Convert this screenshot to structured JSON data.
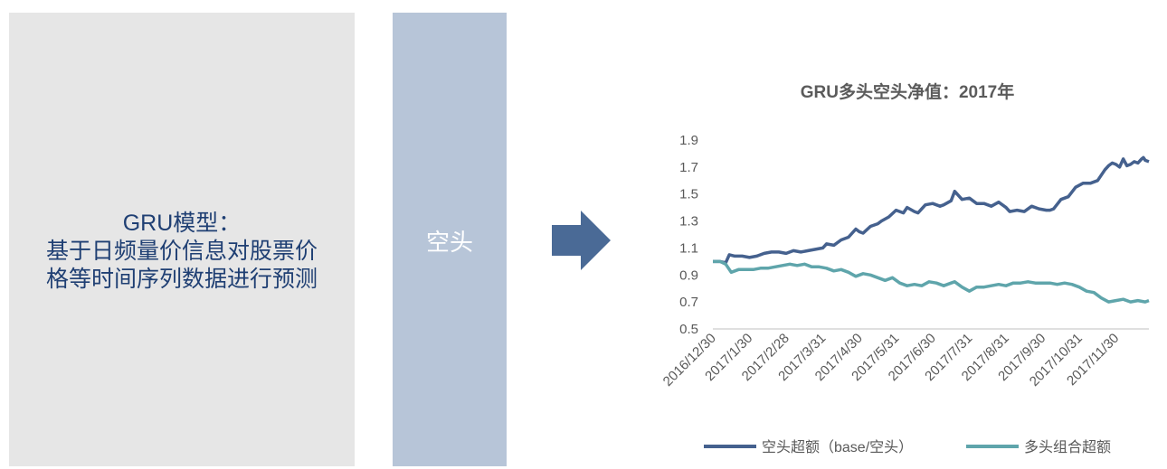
{
  "left_box": {
    "line1": "GRU模型：",
    "line2": "基于日频量价信息对股票价",
    "line3": "格等时间序列数据进行预测"
  },
  "mid_box": {
    "label": "空头"
  },
  "colors": {
    "left_bg": "#e6e6e6",
    "left_text": "#1f3f73",
    "mid_bg": "#b7c5d8",
    "arrow": "#4a6a96",
    "series_short": "#45618e",
    "series_long": "#5fa5ab"
  },
  "chart_data": {
    "type": "line",
    "title": "GRU多头空头净值：2017年",
    "ylim": [
      0.5,
      1.9
    ],
    "yticks": [
      "0.5",
      "0.7",
      "0.9",
      "1.1",
      "1.3",
      "1.5",
      "1.7",
      "1.9"
    ],
    "x_ticks": [
      "2016/12/30",
      "2017/1/30",
      "2017/2/28",
      "2017/3/31",
      "2017/4/30",
      "2017/5/31",
      "2017/6/30",
      "2017/7/31",
      "2017/8/31",
      "2017/9/30",
      "2017/10/31",
      "2017/11/30"
    ],
    "x_tick_values": [
      0,
      1,
      2,
      3,
      4,
      5,
      6,
      7,
      8,
      9,
      10,
      11
    ],
    "x_range": [
      0,
      11.9
    ],
    "grid": false,
    "legend_position": "bottom",
    "series": [
      {
        "name": "空头超额（base/空头）",
        "x": [
          0,
          0.2,
          0.35,
          0.45,
          0.6,
          0.8,
          1.0,
          1.2,
          1.4,
          1.6,
          1.8,
          2.0,
          2.2,
          2.4,
          2.6,
          2.8,
          3.0,
          3.1,
          3.3,
          3.5,
          3.7,
          3.9,
          4.0,
          4.1,
          4.3,
          4.5,
          4.6,
          4.8,
          5.0,
          5.2,
          5.3,
          5.5,
          5.6,
          5.8,
          6.0,
          6.2,
          6.3,
          6.5,
          6.6,
          6.8,
          7.0,
          7.2,
          7.4,
          7.6,
          7.8,
          8.0,
          8.1,
          8.3,
          8.5,
          8.7,
          8.9,
          9.1,
          9.2,
          9.3,
          9.5,
          9.7,
          9.9,
          10.1,
          10.3,
          10.5,
          10.7,
          10.8,
          10.9,
          11.0,
          11.1,
          11.2,
          11.3,
          11.4,
          11.5,
          11.6,
          11.7,
          11.75,
          11.8,
          11.9
        ],
        "values": [
          1.0,
          1.0,
          0.99,
          1.05,
          1.04,
          1.04,
          1.03,
          1.04,
          1.06,
          1.07,
          1.07,
          1.06,
          1.08,
          1.07,
          1.08,
          1.09,
          1.1,
          1.13,
          1.12,
          1.16,
          1.18,
          1.24,
          1.22,
          1.21,
          1.26,
          1.28,
          1.3,
          1.33,
          1.38,
          1.36,
          1.4,
          1.37,
          1.36,
          1.42,
          1.43,
          1.41,
          1.42,
          1.45,
          1.52,
          1.46,
          1.47,
          1.43,
          1.43,
          1.41,
          1.44,
          1.4,
          1.37,
          1.38,
          1.37,
          1.41,
          1.39,
          1.38,
          1.38,
          1.39,
          1.46,
          1.48,
          1.55,
          1.58,
          1.58,
          1.6,
          1.68,
          1.71,
          1.73,
          1.72,
          1.7,
          1.76,
          1.71,
          1.72,
          1.74,
          1.73,
          1.76,
          1.77,
          1.75,
          1.74
        ]
      },
      {
        "name": "多头组合超额",
        "x": [
          0,
          0.2,
          0.35,
          0.5,
          0.7,
          0.9,
          1.1,
          1.3,
          1.5,
          1.7,
          1.9,
          2.1,
          2.3,
          2.5,
          2.7,
          2.9,
          3.1,
          3.3,
          3.5,
          3.7,
          3.9,
          4.1,
          4.3,
          4.5,
          4.7,
          4.9,
          5.1,
          5.3,
          5.5,
          5.7,
          5.9,
          6.1,
          6.3,
          6.5,
          6.6,
          6.8,
          7.0,
          7.2,
          7.4,
          7.6,
          7.8,
          8.0,
          8.2,
          8.4,
          8.6,
          8.8,
          9.0,
          9.2,
          9.4,
          9.6,
          9.8,
          10.0,
          10.2,
          10.4,
          10.6,
          10.8,
          11.0,
          11.2,
          11.4,
          11.6,
          11.8,
          11.9
        ],
        "values": [
          1.0,
          1.0,
          0.98,
          0.92,
          0.94,
          0.94,
          0.94,
          0.95,
          0.95,
          0.96,
          0.97,
          0.98,
          0.97,
          0.98,
          0.96,
          0.96,
          0.95,
          0.93,
          0.94,
          0.92,
          0.89,
          0.91,
          0.9,
          0.88,
          0.86,
          0.88,
          0.84,
          0.82,
          0.83,
          0.82,
          0.85,
          0.84,
          0.82,
          0.84,
          0.85,
          0.81,
          0.78,
          0.81,
          0.81,
          0.82,
          0.83,
          0.82,
          0.84,
          0.84,
          0.85,
          0.84,
          0.84,
          0.84,
          0.83,
          0.84,
          0.83,
          0.81,
          0.78,
          0.77,
          0.73,
          0.7,
          0.71,
          0.72,
          0.7,
          0.71,
          0.7,
          0.71
        ]
      }
    ]
  }
}
